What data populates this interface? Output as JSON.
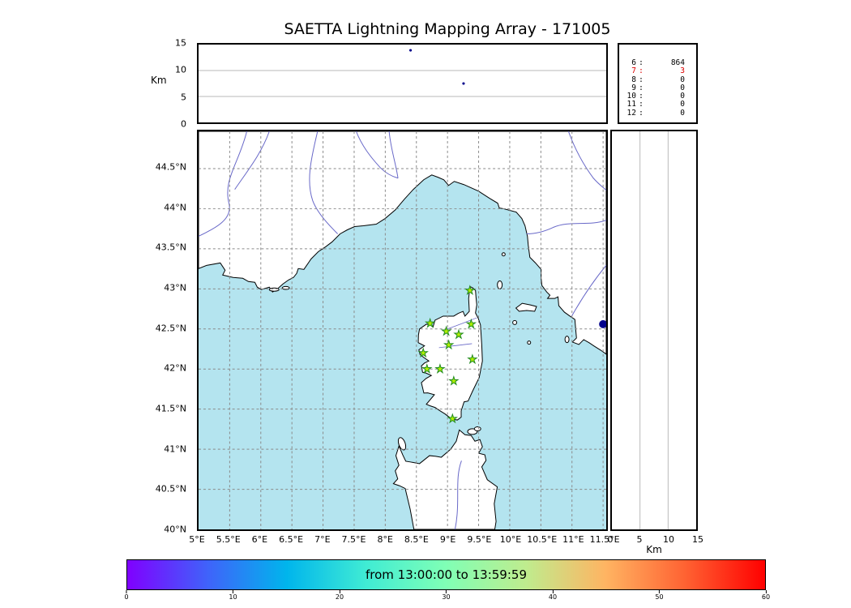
{
  "title": "SAETTA Lightning Mapping Array - 171005",
  "colors": {
    "sea": "#b4e4ef",
    "land": "#ffffff",
    "coastline": "#000000",
    "river": "#6868c8",
    "grid": "#8a8a8a",
    "panel_grid": "#b8b8b8",
    "star_fill": "#b0f000",
    "star_stroke": "#228b22",
    "source_dot": "#00008b",
    "stats_highlight": "#dd0000"
  },
  "alt_axis": {
    "unit": "Km",
    "labels": [
      "15",
      "10",
      "5",
      "0"
    ]
  },
  "km_axis": {
    "unit": "Km",
    "labels": [
      "0",
      "5",
      "10",
      "15"
    ]
  },
  "map_axis": {
    "lat_labels": [
      "44.5°N",
      "44°N",
      "43.5°N",
      "43°N",
      "42.5°N",
      "42°N",
      "41.5°N",
      "41°N",
      "40.5°N",
      "40°N"
    ],
    "lon_labels": [
      "5°E",
      "5.5°E",
      "6°E",
      "6.5°E",
      "7°E",
      "7.5°E",
      "8°E",
      "8.5°E",
      "9°E",
      "9.5°E",
      "10°E",
      "10.5°E",
      "11°E",
      "11.5°E"
    ]
  },
  "stats": {
    "rows": [
      {
        "n": "6",
        "count": "864",
        "highlight": false
      },
      {
        "n": "7",
        "count": "3",
        "highlight": true
      },
      {
        "n": "8",
        "count": "0",
        "highlight": false
      },
      {
        "n": "9",
        "count": "0",
        "highlight": false
      },
      {
        "n": "10",
        "count": "0",
        "highlight": false
      },
      {
        "n": "11",
        "count": "0",
        "highlight": false
      },
      {
        "n": "12",
        "count": "0",
        "highlight": false
      }
    ]
  },
  "colorbar": {
    "label": "from 13:00:00 to 13:59:59",
    "tick_labels": [
      "0",
      "10",
      "20",
      "30",
      "40",
      "50",
      "60"
    ],
    "gradient": [
      "#8000ff",
      "#4062fa",
      "#00b5ec",
      "#40ecd4",
      "#80ffb5",
      "#bfec8e",
      "#ffb462",
      "#ff6232",
      "#ff0000"
    ]
  },
  "chart_data": [
    {
      "id": "altitude_time",
      "type": "scatter",
      "ylabel": "Km",
      "ylim": [
        0,
        15
      ],
      "yticks": [
        15,
        10,
        5,
        0
      ],
      "gridlines_km": [
        5,
        10
      ],
      "points": [
        {
          "x_frac": 0.52,
          "alt_km": 13.9
        },
        {
          "x_frac": 0.65,
          "alt_km": 7.5
        }
      ]
    },
    {
      "id": "stations_contributing_histogram",
      "type": "table",
      "rows": [
        [
          "6",
          864
        ],
        [
          "7",
          3
        ],
        [
          "8",
          0
        ],
        [
          "9",
          0
        ],
        [
          "10",
          0
        ],
        [
          "11",
          0
        ],
        [
          "12",
          0
        ]
      ]
    },
    {
      "id": "plan_view_map",
      "type": "scatter",
      "xlim": [
        5,
        11.55
      ],
      "ylim": [
        40,
        44.97
      ],
      "xticks": [
        5,
        5.5,
        6,
        6.5,
        7,
        7.5,
        8,
        8.5,
        9,
        9.5,
        10,
        10.5,
        11,
        11.5
      ],
      "yticks": [
        44.5,
        44,
        43.5,
        43,
        42.5,
        42,
        41.5,
        41,
        40.5,
        40
      ],
      "stations_lon_lat": [
        [
          9.36,
          42.98
        ],
        [
          8.72,
          42.57
        ],
        [
          8.98,
          42.47
        ],
        [
          9.18,
          42.43
        ],
        [
          9.38,
          42.56
        ],
        [
          9.02,
          42.3
        ],
        [
          8.61,
          42.2
        ],
        [
          9.4,
          42.12
        ],
        [
          8.67,
          42.0
        ],
        [
          8.88,
          42.0
        ],
        [
          9.1,
          41.85
        ],
        [
          9.08,
          41.38
        ]
      ],
      "source_points_lon_lat": [
        [
          11.5,
          42.56
        ]
      ]
    },
    {
      "id": "altitude_lat",
      "type": "scatter",
      "xlabel": "Km",
      "xlim": [
        0,
        15
      ],
      "xticks": [
        0,
        5,
        10,
        15
      ],
      "gridlines_km": [
        5,
        10
      ],
      "points": []
    },
    {
      "id": "time_colorbar",
      "type": "colorbar",
      "label": "from 13:00:00 to 13:59:59",
      "range_minutes": [
        0,
        60
      ],
      "ticks": [
        0,
        10,
        20,
        30,
        40,
        50,
        60
      ]
    }
  ]
}
